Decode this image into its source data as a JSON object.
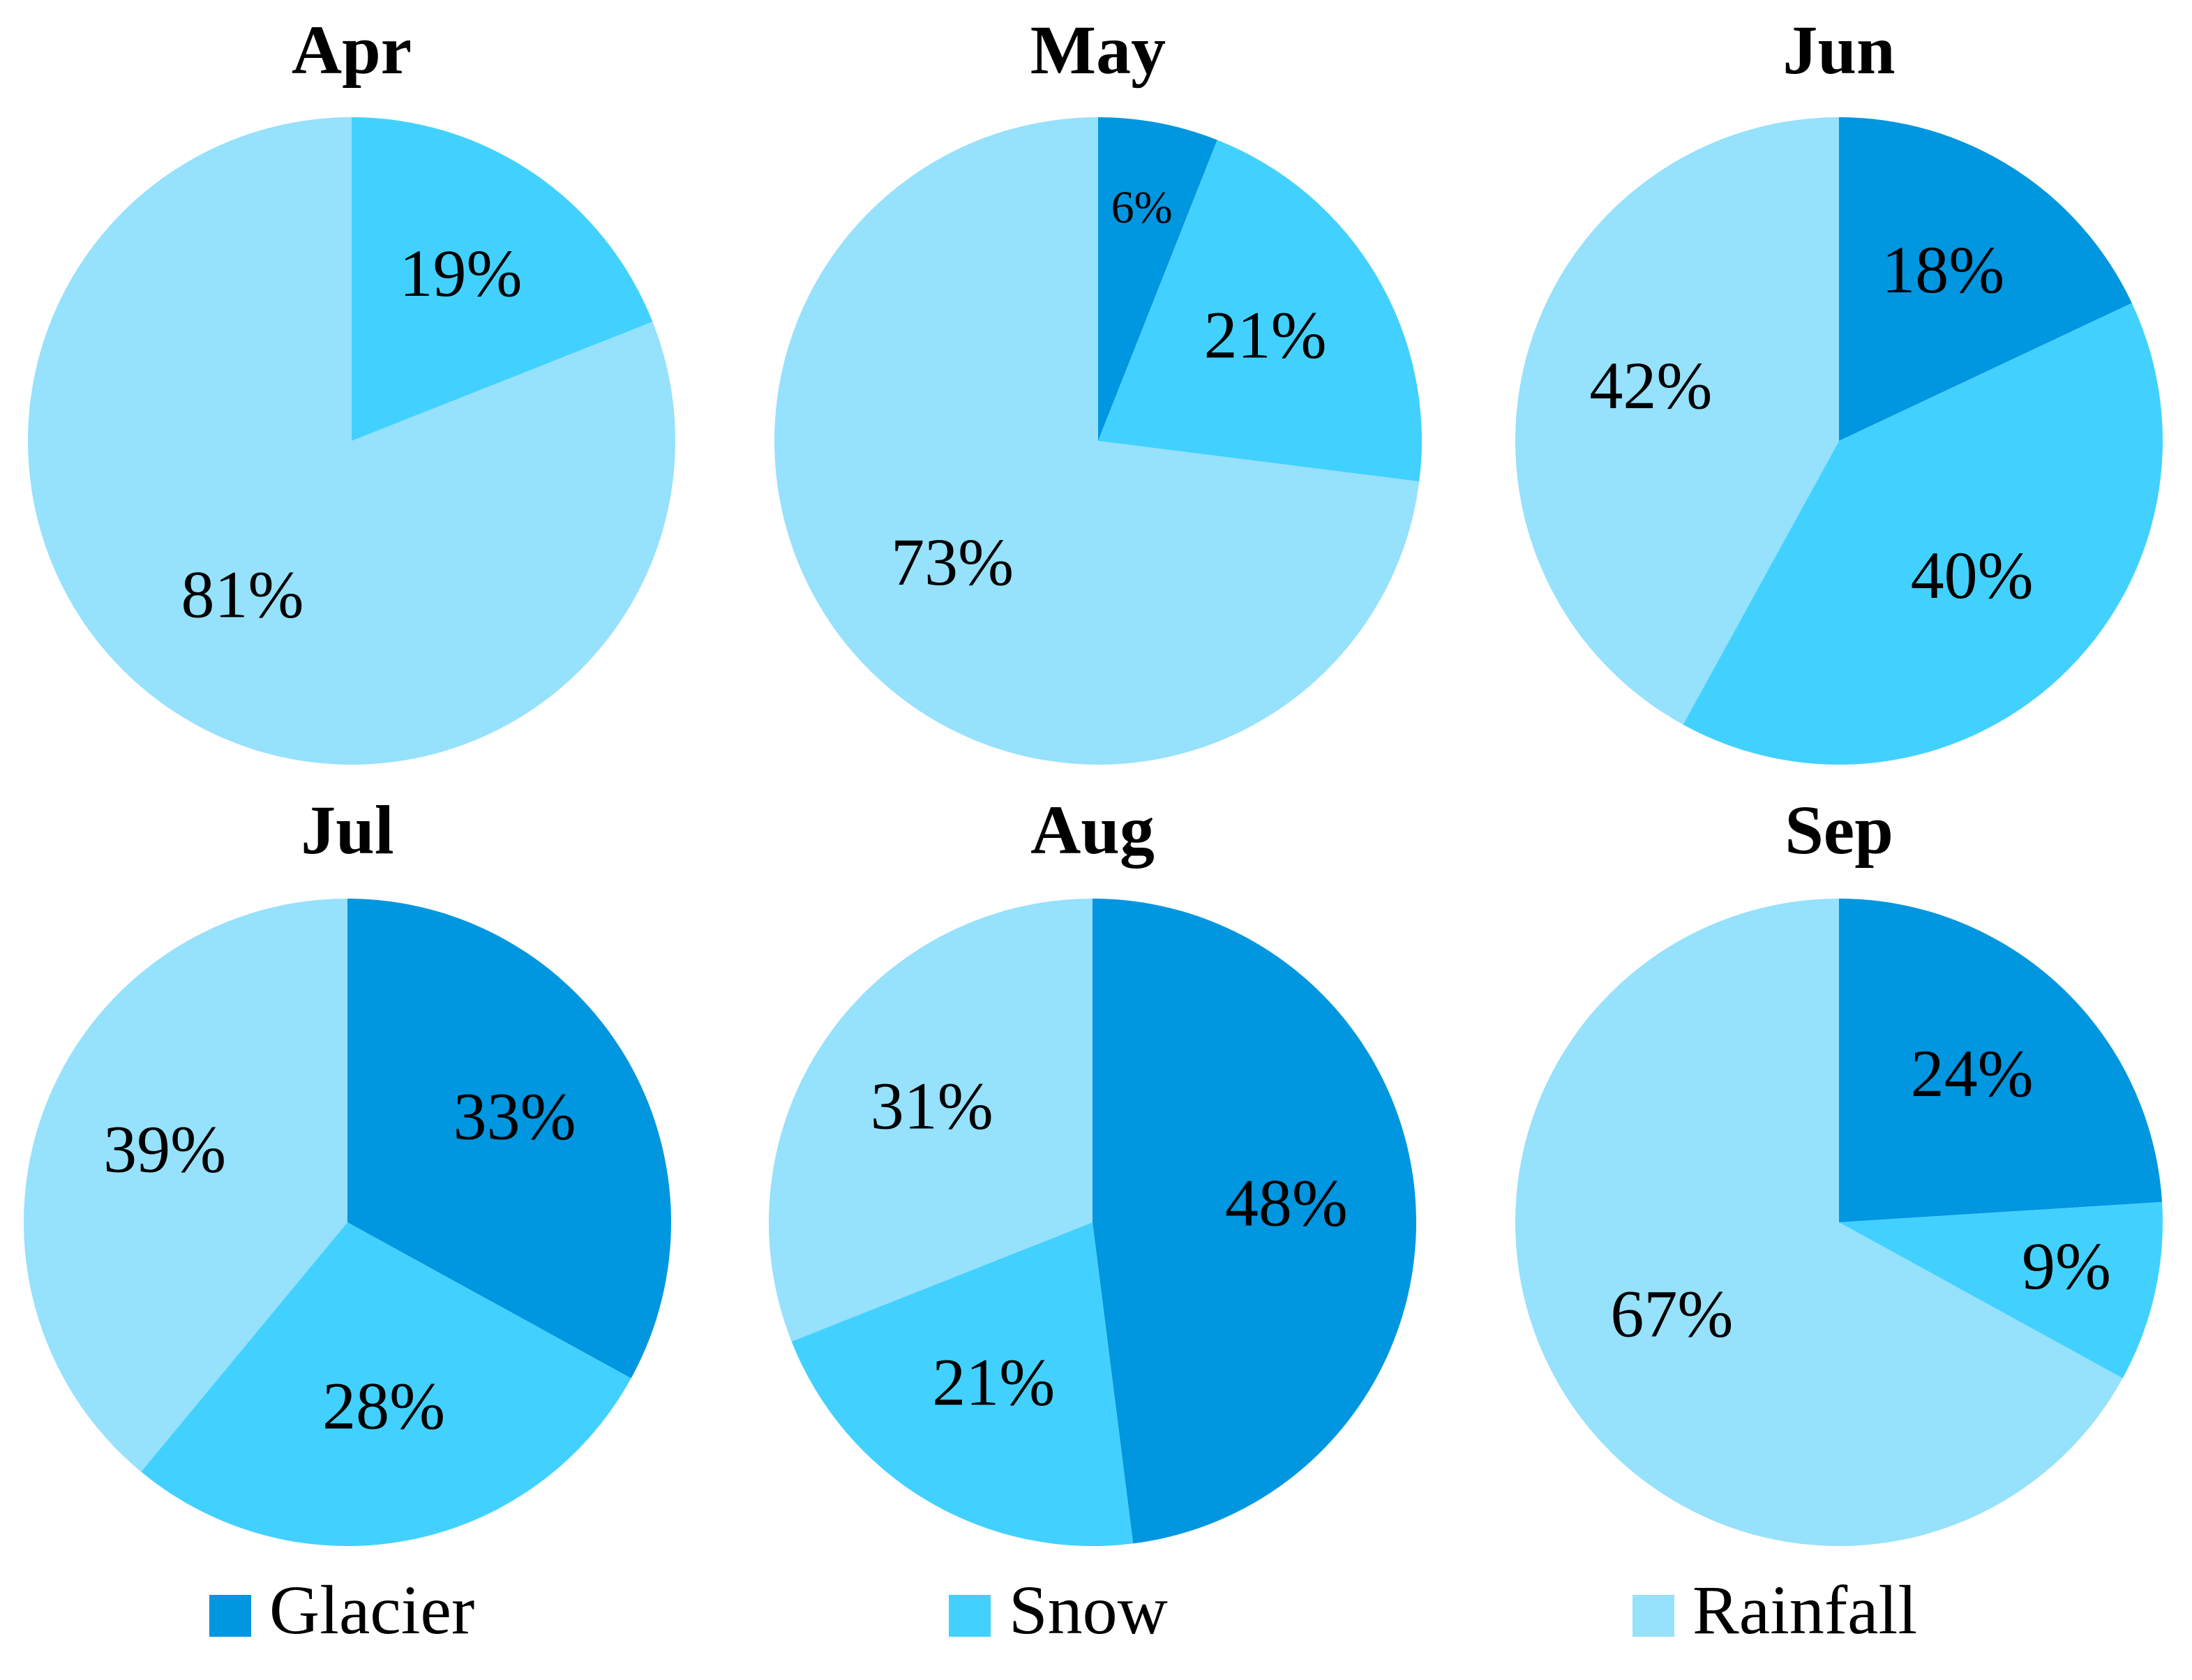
{
  "chart_data": {
    "type": "pie",
    "legend": [
      {
        "name": "Glacier",
        "color": "#0096e0"
      },
      {
        "name": "Snow",
        "color": "#42d1fe"
      },
      {
        "name": "Rainfall",
        "color": "#96e1fc"
      }
    ],
    "panels": [
      {
        "title": "Apr",
        "values": [
          null,
          19,
          81
        ],
        "value_labels": [
          null,
          "19%",
          "81%"
        ]
      },
      {
        "title": "May",
        "values": [
          6,
          21,
          73
        ],
        "value_labels": [
          "6%",
          "21%",
          "73%"
        ]
      },
      {
        "title": "Jun",
        "values": [
          18,
          40,
          42
        ],
        "value_labels": [
          "18%",
          "40%",
          "42%"
        ]
      },
      {
        "title": "Jul",
        "values": [
          33,
          28,
          39
        ],
        "value_labels": [
          "33%",
          "28%",
          "39%"
        ]
      },
      {
        "title": "Aug",
        "values": [
          48,
          21,
          31
        ],
        "value_labels": [
          "48%",
          "21%",
          "31%"
        ]
      },
      {
        "title": "Sep",
        "values": [
          24,
          9,
          67
        ],
        "value_labels": [
          "24%",
          "9%",
          "67%"
        ]
      }
    ]
  }
}
